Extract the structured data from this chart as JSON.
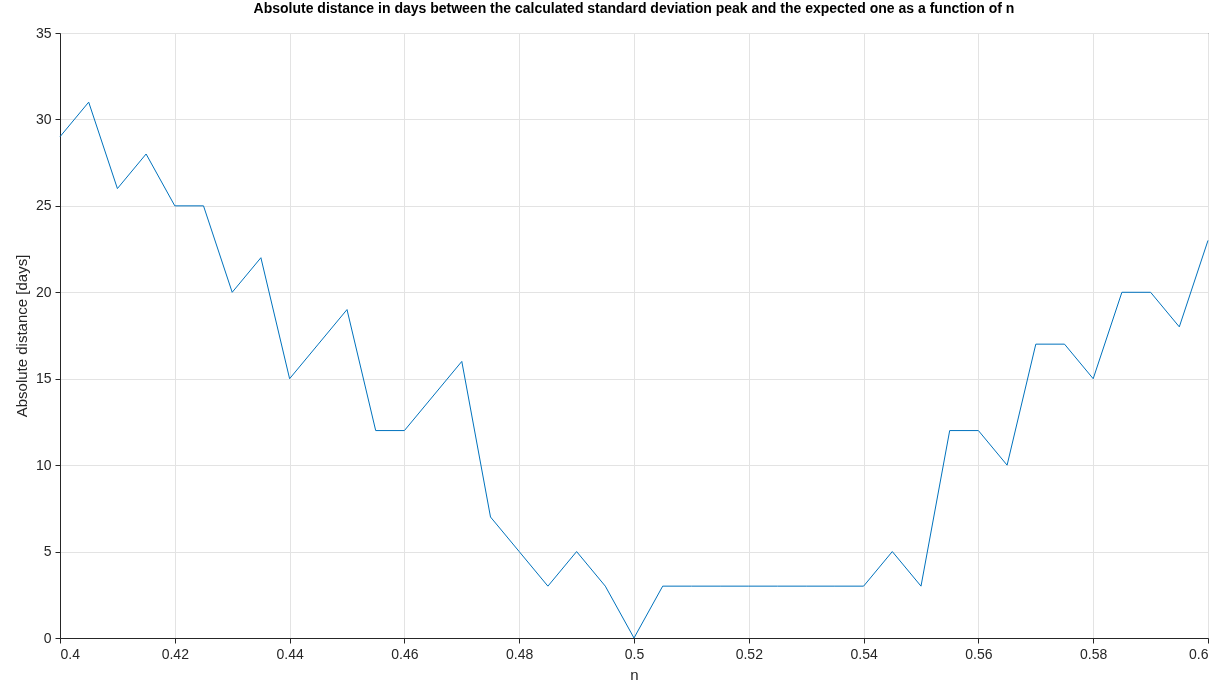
{
  "chart_data": {
    "type": "line",
    "title": "Absolute distance in days between the calculated standard deviation peak and the expected one as a function of n",
    "xlabel": "n",
    "ylabel": "Absolute distance [days]",
    "x": [
      0.4,
      0.405,
      0.41,
      0.415,
      0.42,
      0.425,
      0.43,
      0.435,
      0.44,
      0.445,
      0.45,
      0.455,
      0.46,
      0.465,
      0.47,
      0.475,
      0.48,
      0.485,
      0.49,
      0.495,
      0.5,
      0.505,
      0.51,
      0.515,
      0.52,
      0.525,
      0.53,
      0.535,
      0.54,
      0.545,
      0.55,
      0.555,
      0.56,
      0.565,
      0.57,
      0.575,
      0.58,
      0.585,
      0.59,
      0.595,
      0.6
    ],
    "series": [
      {
        "color": "#0072bd",
        "values": [
          29,
          31,
          26,
          28,
          25,
          25,
          20,
          22,
          15,
          17,
          19,
          12,
          12,
          14,
          16,
          7,
          5,
          3,
          5,
          3,
          0,
          3,
          3,
          3,
          3,
          3,
          3,
          3,
          3,
          5,
          3,
          12,
          12,
          10,
          17,
          17,
          15,
          20,
          20,
          18,
          23
        ]
      }
    ],
    "xlim": [
      0.4,
      0.6
    ],
    "xticks": [
      0.4,
      0.42,
      0.44,
      0.46,
      0.48,
      0.5,
      0.52,
      0.54,
      0.56,
      0.58,
      0.6
    ],
    "ylim": [
      0,
      35
    ],
    "yticks": [
      0,
      5,
      10,
      15,
      20,
      25,
      30,
      35
    ],
    "grid": true,
    "marker": "none",
    "line_style": "solid"
  }
}
